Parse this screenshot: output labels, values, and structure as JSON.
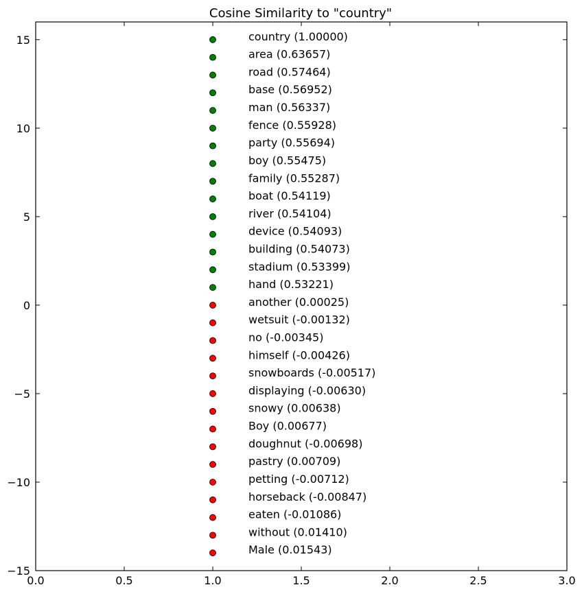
{
  "chart_data": {
    "type": "scatter",
    "title": "Cosine Similarity to \"country\"",
    "xlabel": "",
    "ylabel": "",
    "xlim": [
      0.0,
      3.0
    ],
    "ylim": [
      -15,
      16
    ],
    "xticks": [
      0.0,
      0.5,
      1.0,
      1.5,
      2.0,
      2.5,
      3.0
    ],
    "xtick_labels": [
      "0.0",
      "0.5",
      "1.0",
      "1.5",
      "2.0",
      "2.5",
      "3.0"
    ],
    "yticks": [
      -15,
      -10,
      -5,
      0,
      5,
      10,
      15
    ],
    "ytick_labels": [
      "−15",
      "−10",
      "−5",
      "0",
      "5",
      "10",
      "15"
    ],
    "grid": false,
    "colors": {
      "positive": "#008000",
      "negative": "#ff0000",
      "edge": "#000000"
    },
    "points": [
      {
        "x": 1,
        "y": 15,
        "color": "#008000",
        "label": "country (1.00000)"
      },
      {
        "x": 1,
        "y": 14,
        "color": "#008000",
        "label": "area (0.63657)"
      },
      {
        "x": 1,
        "y": 13,
        "color": "#008000",
        "label": "road (0.57464)"
      },
      {
        "x": 1,
        "y": 12,
        "color": "#008000",
        "label": "base (0.56952)"
      },
      {
        "x": 1,
        "y": 11,
        "color": "#008000",
        "label": "man (0.56337)"
      },
      {
        "x": 1,
        "y": 10,
        "color": "#008000",
        "label": "fence (0.55928)"
      },
      {
        "x": 1,
        "y": 9,
        "color": "#008000",
        "label": "party (0.55694)"
      },
      {
        "x": 1,
        "y": 8,
        "color": "#008000",
        "label": "boy (0.55475)"
      },
      {
        "x": 1,
        "y": 7,
        "color": "#008000",
        "label": "family (0.55287)"
      },
      {
        "x": 1,
        "y": 6,
        "color": "#008000",
        "label": "boat (0.54119)"
      },
      {
        "x": 1,
        "y": 5,
        "color": "#008000",
        "label": "river (0.54104)"
      },
      {
        "x": 1,
        "y": 4,
        "color": "#008000",
        "label": "device (0.54093)"
      },
      {
        "x": 1,
        "y": 3,
        "color": "#008000",
        "label": "building (0.54073)"
      },
      {
        "x": 1,
        "y": 2,
        "color": "#008000",
        "label": "stadium (0.53399)"
      },
      {
        "x": 1,
        "y": 1,
        "color": "#008000",
        "label": "hand (0.53221)"
      },
      {
        "x": 1,
        "y": 0,
        "color": "#ff0000",
        "label": "another (0.00025)"
      },
      {
        "x": 1,
        "y": -1,
        "color": "#ff0000",
        "label": "wetsuit (-0.00132)"
      },
      {
        "x": 1,
        "y": -2,
        "color": "#ff0000",
        "label": "no (-0.00345)"
      },
      {
        "x": 1,
        "y": -3,
        "color": "#ff0000",
        "label": "himself (-0.00426)"
      },
      {
        "x": 1,
        "y": -4,
        "color": "#ff0000",
        "label": "snowboards (-0.00517)"
      },
      {
        "x": 1,
        "y": -5,
        "color": "#ff0000",
        "label": "displaying (-0.00630)"
      },
      {
        "x": 1,
        "y": -6,
        "color": "#ff0000",
        "label": "snowy (0.00638)"
      },
      {
        "x": 1,
        "y": -7,
        "color": "#ff0000",
        "label": "Boy (0.00677)"
      },
      {
        "x": 1,
        "y": -8,
        "color": "#ff0000",
        "label": "doughnut (-0.00698)"
      },
      {
        "x": 1,
        "y": -9,
        "color": "#ff0000",
        "label": "pastry (0.00709)"
      },
      {
        "x": 1,
        "y": -10,
        "color": "#ff0000",
        "label": "petting (-0.00712)"
      },
      {
        "x": 1,
        "y": -11,
        "color": "#ff0000",
        "label": "horseback (-0.00847)"
      },
      {
        "x": 1,
        "y": -12,
        "color": "#ff0000",
        "label": "eaten (-0.01086)"
      },
      {
        "x": 1,
        "y": -13,
        "color": "#ff0000",
        "label": "without (0.01410)"
      },
      {
        "x": 1,
        "y": -14,
        "color": "#ff0000",
        "label": "Male (0.01543)"
      }
    ]
  }
}
